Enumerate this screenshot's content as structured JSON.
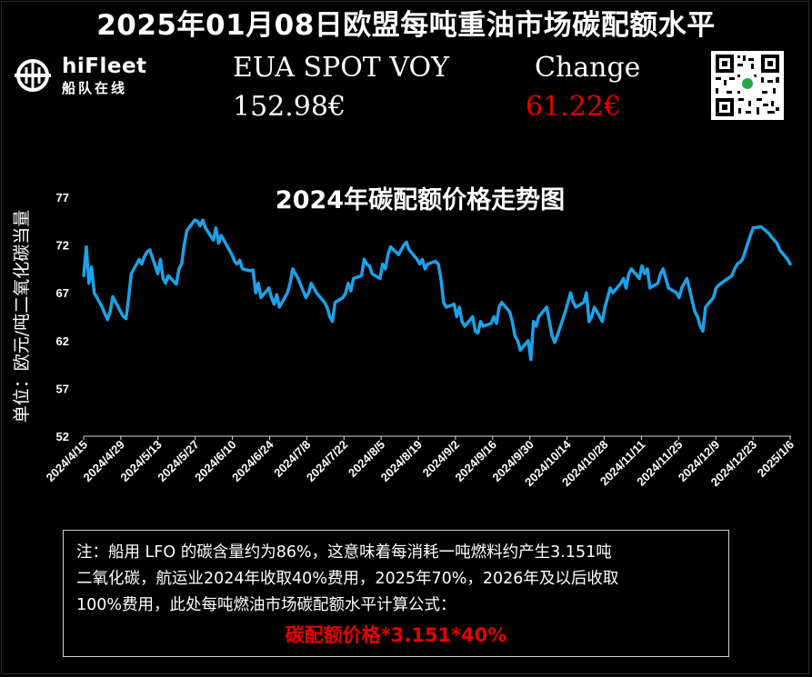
{
  "header": {
    "title": "2025年01月08日欧盟每吨重油市场碳配额水平"
  },
  "logo": {
    "brand": "hiFleet",
    "subtitle": "船队在线",
    "icon": "hifleet-logo-icon"
  },
  "market": {
    "label": "EUA SPOT VOY",
    "value": "152.98€",
    "change_label": "Change",
    "change_value": "61.22€",
    "change_color": "#e60000"
  },
  "qr_code": {
    "icon": "qr-code-icon"
  },
  "chart_data": {
    "type": "line",
    "title": "2024年碳配额价格走势图",
    "ylabel": "单位：欧元/吨二氧化碳当量",
    "xlabel": "",
    "ylim": [
      52,
      77
    ],
    "yticks": [
      77,
      72,
      67,
      62,
      57,
      52
    ],
    "xticks": [
      "2024/4/15",
      "2024/4/29",
      "2024/5/13",
      "2024/5/27",
      "2024/6/10",
      "2024/6/24",
      "2024/7/8",
      "2024/7/22",
      "2024/8/5",
      "2024/8/19",
      "2024/9/2",
      "2024/9/16",
      "2024/9/30",
      "2024/10/14",
      "2024/10/28",
      "2024/11/11",
      "2024/11/25",
      "2024/12/9",
      "2024/12/23",
      "2025/1/6"
    ],
    "grid": false,
    "line_color": "#1aa3e8",
    "series": [
      {
        "values": [
          {
            "x": "2024-04-15",
            "y": 68.8
          },
          {
            "x": "2024-04-16",
            "y": 71.8
          },
          {
            "x": "2024-04-17",
            "y": 68.0
          },
          {
            "x": "2024-04-18",
            "y": 69.7
          },
          {
            "x": "2024-04-19",
            "y": 67.0
          },
          {
            "x": "2024-04-22",
            "y": 65.5
          },
          {
            "x": "2024-04-23",
            "y": 64.8
          },
          {
            "x": "2024-04-24",
            "y": 64.2
          },
          {
            "x": "2024-04-25",
            "y": 65.0
          },
          {
            "x": "2024-04-26",
            "y": 66.6
          },
          {
            "x": "2024-04-29",
            "y": 65.0
          },
          {
            "x": "2024-04-30",
            "y": 64.5
          },
          {
            "x": "2024-05-01",
            "y": 64.3
          },
          {
            "x": "2024-05-02",
            "y": 66.5
          },
          {
            "x": "2024-05-03",
            "y": 69.0
          },
          {
            "x": "2024-05-06",
            "y": 70.5
          },
          {
            "x": "2024-05-07",
            "y": 70.0
          },
          {
            "x": "2024-05-08",
            "y": 70.8
          },
          {
            "x": "2024-05-09",
            "y": 71.3
          },
          {
            "x": "2024-05-10",
            "y": 71.5
          },
          {
            "x": "2024-05-13",
            "y": 69.0
          },
          {
            "x": "2024-05-14",
            "y": 70.5
          },
          {
            "x": "2024-05-15",
            "y": 68.5
          },
          {
            "x": "2024-05-16",
            "y": 68.0
          },
          {
            "x": "2024-05-17",
            "y": 68.8
          },
          {
            "x": "2024-05-20",
            "y": 67.9
          },
          {
            "x": "2024-05-21",
            "y": 69.5
          },
          {
            "x": "2024-05-22",
            "y": 70.0
          },
          {
            "x": "2024-05-23",
            "y": 72.0
          },
          {
            "x": "2024-05-24",
            "y": 73.5
          },
          {
            "x": "2024-05-27",
            "y": 74.6
          },
          {
            "x": "2024-05-28",
            "y": 74.5
          },
          {
            "x": "2024-05-29",
            "y": 74.0
          },
          {
            "x": "2024-05-30",
            "y": 74.6
          },
          {
            "x": "2024-05-31",
            "y": 73.8
          },
          {
            "x": "2024-06-03",
            "y": 72.5
          },
          {
            "x": "2024-06-04",
            "y": 73.8
          },
          {
            "x": "2024-06-05",
            "y": 72.2
          },
          {
            "x": "2024-06-06",
            "y": 73.0
          },
          {
            "x": "2024-06-07",
            "y": 72.5
          },
          {
            "x": "2024-06-10",
            "y": 71.0
          },
          {
            "x": "2024-06-11",
            "y": 70.3
          },
          {
            "x": "2024-06-12",
            "y": 70.0
          },
          {
            "x": "2024-06-13",
            "y": 70.4
          },
          {
            "x": "2024-06-14",
            "y": 69.5
          },
          {
            "x": "2024-06-17",
            "y": 69.3
          },
          {
            "x": "2024-06-18",
            "y": 69.4
          },
          {
            "x": "2024-06-19",
            "y": 67.0
          },
          {
            "x": "2024-06-20",
            "y": 68.0
          },
          {
            "x": "2024-06-21",
            "y": 66.5
          },
          {
            "x": "2024-06-24",
            "y": 67.5
          },
          {
            "x": "2024-06-25",
            "y": 66.5
          },
          {
            "x": "2024-06-26",
            "y": 65.8
          },
          {
            "x": "2024-06-27",
            "y": 66.8
          },
          {
            "x": "2024-06-28",
            "y": 65.5
          },
          {
            "x": "2024-07-01",
            "y": 67.0
          },
          {
            "x": "2024-07-02",
            "y": 68.0
          },
          {
            "x": "2024-07-03",
            "y": 69.5
          },
          {
            "x": "2024-07-04",
            "y": 69.0
          },
          {
            "x": "2024-07-05",
            "y": 68.5
          },
          {
            "x": "2024-07-08",
            "y": 66.5
          },
          {
            "x": "2024-07-09",
            "y": 67.0
          },
          {
            "x": "2024-07-10",
            "y": 68.0
          },
          {
            "x": "2024-07-11",
            "y": 67.5
          },
          {
            "x": "2024-07-12",
            "y": 67.0
          },
          {
            "x": "2024-07-15",
            "y": 66.0
          },
          {
            "x": "2024-07-16",
            "y": 65.5
          },
          {
            "x": "2024-07-17",
            "y": 64.5
          },
          {
            "x": "2024-07-18",
            "y": 64.0
          },
          {
            "x": "2024-07-19",
            "y": 66.0
          },
          {
            "x": "2024-07-22",
            "y": 66.5
          },
          {
            "x": "2024-07-23",
            "y": 67.0
          },
          {
            "x": "2024-07-24",
            "y": 68.0
          },
          {
            "x": "2024-07-25",
            "y": 67.2
          },
          {
            "x": "2024-07-26",
            "y": 68.5
          },
          {
            "x": "2024-07-29",
            "y": 68.8
          },
          {
            "x": "2024-07-30",
            "y": 70.5
          },
          {
            "x": "2024-07-31",
            "y": 70.0
          },
          {
            "x": "2024-08-01",
            "y": 69.8
          },
          {
            "x": "2024-08-02",
            "y": 69.0
          },
          {
            "x": "2024-08-05",
            "y": 68.5
          },
          {
            "x": "2024-08-06",
            "y": 70.0
          },
          {
            "x": "2024-08-07",
            "y": 69.5
          },
          {
            "x": "2024-08-08",
            "y": 71.0
          },
          {
            "x": "2024-08-09",
            "y": 71.8
          },
          {
            "x": "2024-08-12",
            "y": 71.0
          },
          {
            "x": "2024-08-13",
            "y": 71.5
          },
          {
            "x": "2024-08-14",
            "y": 72.0
          },
          {
            "x": "2024-08-15",
            "y": 72.3
          },
          {
            "x": "2024-08-16",
            "y": 71.5
          },
          {
            "x": "2024-08-19",
            "y": 70.5
          },
          {
            "x": "2024-08-20",
            "y": 70.0
          },
          {
            "x": "2024-08-21",
            "y": 70.5
          },
          {
            "x": "2024-08-22",
            "y": 69.5
          },
          {
            "x": "2024-08-23",
            "y": 70.0
          },
          {
            "x": "2024-08-26",
            "y": 70.3
          },
          {
            "x": "2024-08-27",
            "y": 70.0
          },
          {
            "x": "2024-08-28",
            "y": 68.5
          },
          {
            "x": "2024-08-29",
            "y": 66.0
          },
          {
            "x": "2024-08-30",
            "y": 65.5
          },
          {
            "x": "2024-09-02",
            "y": 65.8
          },
          {
            "x": "2024-09-03",
            "y": 64.5
          },
          {
            "x": "2024-09-04",
            "y": 65.5
          },
          {
            "x": "2024-09-05",
            "y": 64.0
          },
          {
            "x": "2024-09-06",
            "y": 63.5
          },
          {
            "x": "2024-09-09",
            "y": 64.5
          },
          {
            "x": "2024-09-10",
            "y": 63.0
          },
          {
            "x": "2024-09-11",
            "y": 62.8
          },
          {
            "x": "2024-09-12",
            "y": 64.0
          },
          {
            "x": "2024-09-13",
            "y": 63.5
          },
          {
            "x": "2024-09-16",
            "y": 63.8
          },
          {
            "x": "2024-09-17",
            "y": 64.5
          },
          {
            "x": "2024-09-18",
            "y": 63.8
          },
          {
            "x": "2024-09-19",
            "y": 65.5
          },
          {
            "x": "2024-09-20",
            "y": 66.0
          },
          {
            "x": "2024-09-23",
            "y": 65.0
          },
          {
            "x": "2024-09-24",
            "y": 64.0
          },
          {
            "x": "2024-09-25",
            "y": 62.5
          },
          {
            "x": "2024-09-26",
            "y": 62.0
          },
          {
            "x": "2024-09-27",
            "y": 61.0
          },
          {
            "x": "2024-09-30",
            "y": 62.0
          },
          {
            "x": "2024-10-01",
            "y": 60.0
          },
          {
            "x": "2024-10-02",
            "y": 64.0
          },
          {
            "x": "2024-10-03",
            "y": 63.5
          },
          {
            "x": "2024-10-04",
            "y": 64.5
          },
          {
            "x": "2024-10-07",
            "y": 65.5
          },
          {
            "x": "2024-10-08",
            "y": 64.0
          },
          {
            "x": "2024-10-09",
            "y": 62.5
          },
          {
            "x": "2024-10-10",
            "y": 61.8
          },
          {
            "x": "2024-10-11",
            "y": 62.5
          },
          {
            "x": "2024-10-14",
            "y": 65.0
          },
          {
            "x": "2024-10-15",
            "y": 66.0
          },
          {
            "x": "2024-10-16",
            "y": 67.0
          },
          {
            "x": "2024-10-17",
            "y": 66.0
          },
          {
            "x": "2024-10-18",
            "y": 65.5
          },
          {
            "x": "2024-10-21",
            "y": 66.0
          },
          {
            "x": "2024-10-22",
            "y": 67.0
          },
          {
            "x": "2024-10-23",
            "y": 64.0
          },
          {
            "x": "2024-10-24",
            "y": 64.5
          },
          {
            "x": "2024-10-25",
            "y": 65.5
          },
          {
            "x": "2024-10-28",
            "y": 64.0
          },
          {
            "x": "2024-10-29",
            "y": 65.5
          },
          {
            "x": "2024-10-30",
            "y": 66.5
          },
          {
            "x": "2024-10-31",
            "y": 67.5
          },
          {
            "x": "2024-11-01",
            "y": 67.0
          },
          {
            "x": "2024-11-04",
            "y": 68.0
          },
          {
            "x": "2024-11-05",
            "y": 68.5
          },
          {
            "x": "2024-11-06",
            "y": 67.5
          },
          {
            "x": "2024-11-07",
            "y": 69.0
          },
          {
            "x": "2024-11-08",
            "y": 69.5
          },
          {
            "x": "2024-11-11",
            "y": 68.5
          },
          {
            "x": "2024-11-12",
            "y": 69.8
          },
          {
            "x": "2024-11-13",
            "y": 69.0
          },
          {
            "x": "2024-11-14",
            "y": 69.5
          },
          {
            "x": "2024-11-15",
            "y": 67.5
          },
          {
            "x": "2024-11-18",
            "y": 68.0
          },
          {
            "x": "2024-11-19",
            "y": 69.0
          },
          {
            "x": "2024-11-20",
            "y": 69.5
          },
          {
            "x": "2024-11-21",
            "y": 68.5
          },
          {
            "x": "2024-11-22",
            "y": 67.5
          },
          {
            "x": "2024-11-25",
            "y": 67.0
          },
          {
            "x": "2024-11-26",
            "y": 66.5
          },
          {
            "x": "2024-11-27",
            "y": 67.5
          },
          {
            "x": "2024-11-28",
            "y": 68.0
          },
          {
            "x": "2024-11-29",
            "y": 68.5
          },
          {
            "x": "2024-12-02",
            "y": 65.0
          },
          {
            "x": "2024-12-03",
            "y": 64.5
          },
          {
            "x": "2024-12-04",
            "y": 63.5
          },
          {
            "x": "2024-12-05",
            "y": 63.0
          },
          {
            "x": "2024-12-06",
            "y": 65.5
          },
          {
            "x": "2024-12-09",
            "y": 66.5
          },
          {
            "x": "2024-12-10",
            "y": 67.5
          },
          {
            "x": "2024-12-11",
            "y": 67.8
          },
          {
            "x": "2024-12-12",
            "y": 68.0
          },
          {
            "x": "2024-12-13",
            "y": 68.2
          },
          {
            "x": "2024-12-16",
            "y": 68.8
          },
          {
            "x": "2024-12-17",
            "y": 69.5
          },
          {
            "x": "2024-12-18",
            "y": 70.0
          },
          {
            "x": "2024-12-19",
            "y": 70.2
          },
          {
            "x": "2024-12-20",
            "y": 70.5
          },
          {
            "x": "2024-12-23",
            "y": 73.0
          },
          {
            "x": "2024-12-24",
            "y": 73.8
          },
          {
            "x": "2024-12-27",
            "y": 73.9
          },
          {
            "x": "2024-12-30",
            "y": 73.2
          },
          {
            "x": "2024-12-31",
            "y": 72.8
          },
          {
            "x": "2025-01-02",
            "y": 72.2
          },
          {
            "x": "2025-01-03",
            "y": 71.5
          },
          {
            "x": "2025-01-06",
            "y": 70.5
          },
          {
            "x": "2025-01-07",
            "y": 70.0
          }
        ]
      }
    ]
  },
  "note": {
    "line1": "注：船用 LFO 的碳含量约为86%，这意味着每消耗一吨燃料约产生3.151吨",
    "line2": "二氧化碳，航运业2024年收取40%费用，2025年70%，2026年及以后收取",
    "line3": "100%费用，此处每吨燃油市场碳配额水平计算公式：",
    "formula": "碳配额价格*3.151*40%",
    "formula_color": "#e60000"
  }
}
